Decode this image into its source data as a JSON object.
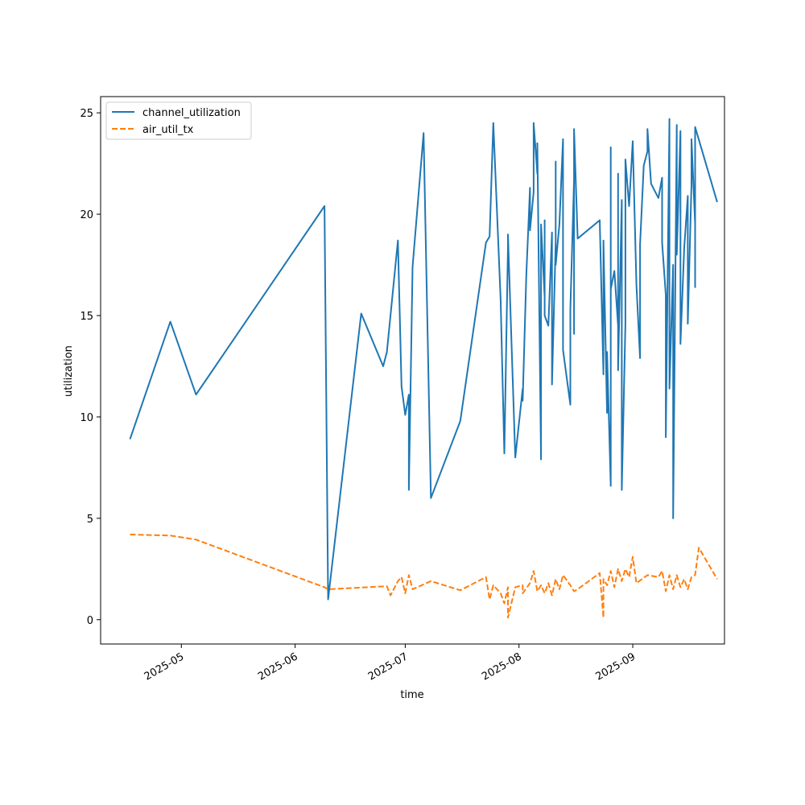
{
  "chart_data": {
    "type": "line",
    "title": "",
    "xlabel": "time",
    "ylabel": "utilization",
    "xlim": [
      "2025-04-09",
      "2025-09-26"
    ],
    "ylim": [
      -1.2,
      25.8
    ],
    "x_ticks": [
      "2025-05-01",
      "2025-06-01",
      "2025-07-01",
      "2025-08-01",
      "2025-09-01"
    ],
    "x_tick_labels": [
      "2025-05",
      "2025-06",
      "2025-07",
      "2025-08",
      "2025-09"
    ],
    "y_ticks": [
      0,
      5,
      10,
      15,
      20,
      25
    ],
    "grid": false,
    "legend_position": "upper-left",
    "series": [
      {
        "name": "channel_utilization",
        "color": "#1f77b4",
        "style": "solid",
        "points": [
          [
            "2025-04-17",
            8.9
          ],
          [
            "2025-04-28",
            14.7
          ],
          [
            "2025-05-05",
            11.1
          ],
          [
            "2025-06-09",
            20.4
          ],
          [
            "2025-06-10",
            1.0
          ],
          [
            "2025-06-19",
            15.1
          ],
          [
            "2025-06-25",
            12.5
          ],
          [
            "2025-06-26",
            13.2
          ],
          [
            "2025-06-29",
            18.7
          ],
          [
            "2025-06-30",
            11.5
          ],
          [
            "2025-07-01",
            10.1
          ],
          [
            "2025-07-02",
            11.1
          ],
          [
            "2025-07-02",
            6.4
          ],
          [
            "2025-07-03",
            17.4
          ],
          [
            "2025-07-06",
            24.0
          ],
          [
            "2025-07-08",
            6.0
          ],
          [
            "2025-07-16",
            9.8
          ],
          [
            "2025-07-23",
            18.6
          ],
          [
            "2025-07-24",
            18.9
          ],
          [
            "2025-07-25",
            24.5
          ],
          [
            "2025-07-27",
            15.8
          ],
          [
            "2025-07-28",
            8.2
          ],
          [
            "2025-07-29",
            18.4
          ],
          [
            "2025-07-29",
            19.0
          ],
          [
            "2025-07-31",
            8.0
          ],
          [
            "2025-08-02",
            11.4
          ],
          [
            "2025-08-02",
            10.8
          ],
          [
            "2025-08-03",
            17.0
          ],
          [
            "2025-08-04",
            21.3
          ],
          [
            "2025-08-04",
            19.2
          ],
          [
            "2025-08-05",
            21.1
          ],
          [
            "2025-08-05",
            24.5
          ],
          [
            "2025-08-06",
            22.0
          ],
          [
            "2025-08-06",
            23.5
          ],
          [
            "2025-08-07",
            7.9
          ],
          [
            "2025-08-07",
            19.5
          ],
          [
            "2025-08-08",
            15.9
          ],
          [
            "2025-08-08",
            19.7
          ],
          [
            "2025-08-08",
            15.0
          ],
          [
            "2025-08-09",
            14.5
          ],
          [
            "2025-08-10",
            19.1
          ],
          [
            "2025-08-10",
            11.6
          ],
          [
            "2025-08-11",
            18.6
          ],
          [
            "2025-08-11",
            22.6
          ],
          [
            "2025-08-11",
            17.5
          ],
          [
            "2025-08-12",
            19.5
          ],
          [
            "2025-08-13",
            23.7
          ],
          [
            "2025-08-13",
            13.3
          ],
          [
            "2025-08-15",
            10.6
          ],
          [
            "2025-08-15",
            15.3
          ],
          [
            "2025-08-16",
            21.7
          ],
          [
            "2025-08-16",
            14.1
          ],
          [
            "2025-08-16",
            24.2
          ],
          [
            "2025-08-17",
            18.8
          ],
          [
            "2025-08-23",
            19.7
          ],
          [
            "2025-08-24",
            12.1
          ],
          [
            "2025-08-24",
            18.7
          ],
          [
            "2025-08-25",
            10.2
          ],
          [
            "2025-08-25",
            13.2
          ],
          [
            "2025-08-26",
            6.6
          ],
          [
            "2025-08-26",
            23.3
          ],
          [
            "2025-08-26",
            16.3
          ],
          [
            "2025-08-27",
            17.2
          ],
          [
            "2025-08-28",
            14.5
          ],
          [
            "2025-08-28",
            22.0
          ],
          [
            "2025-08-28",
            12.3
          ],
          [
            "2025-08-29",
            20.7
          ],
          [
            "2025-08-29",
            6.4
          ],
          [
            "2025-08-30",
            14.6
          ],
          [
            "2025-08-30",
            22.7
          ],
          [
            "2025-08-31",
            20.4
          ],
          [
            "2025-09-01",
            23.6
          ],
          [
            "2025-09-02",
            16.5
          ],
          [
            "2025-09-03",
            12.9
          ],
          [
            "2025-09-03",
            18.5
          ],
          [
            "2025-09-04",
            22.4
          ],
          [
            "2025-09-05",
            23.1
          ],
          [
            "2025-09-05",
            24.2
          ],
          [
            "2025-09-06",
            21.5
          ],
          [
            "2025-09-08",
            20.8
          ],
          [
            "2025-09-09",
            21.8
          ],
          [
            "2025-09-09",
            18.6
          ],
          [
            "2025-09-10",
            16.0
          ],
          [
            "2025-09-10",
            9.0
          ],
          [
            "2025-09-11",
            24.7
          ],
          [
            "2025-09-11",
            11.4
          ],
          [
            "2025-09-12",
            17.5
          ],
          [
            "2025-09-12",
            15.0
          ],
          [
            "2025-09-12",
            5.0
          ],
          [
            "2025-09-13",
            24.4
          ],
          [
            "2025-09-13",
            18.0
          ],
          [
            "2025-09-14",
            24.1
          ],
          [
            "2025-09-14",
            13.6
          ],
          [
            "2025-09-15",
            18.3
          ],
          [
            "2025-09-16",
            20.9
          ],
          [
            "2025-09-16",
            14.6
          ],
          [
            "2025-09-17",
            21.5
          ],
          [
            "2025-09-17",
            23.7
          ],
          [
            "2025-09-18",
            19.5
          ],
          [
            "2025-09-18",
            16.4
          ],
          [
            "2025-09-18",
            24.3
          ],
          [
            "2025-09-24",
            20.6
          ]
        ]
      },
      {
        "name": "air_util_tx",
        "color": "#ff7f0e",
        "style": "dashed",
        "points": [
          [
            "2025-04-17",
            4.2
          ],
          [
            "2025-04-28",
            4.15
          ],
          [
            "2025-05-05",
            3.95
          ],
          [
            "2025-06-09",
            1.6
          ],
          [
            "2025-06-10",
            1.5
          ],
          [
            "2025-06-26",
            1.65
          ],
          [
            "2025-06-27",
            1.2
          ],
          [
            "2025-06-29",
            1.9
          ],
          [
            "2025-06-30",
            2.1
          ],
          [
            "2025-07-01",
            1.3
          ],
          [
            "2025-07-02",
            2.2
          ],
          [
            "2025-07-03",
            1.5
          ],
          [
            "2025-07-08",
            1.9
          ],
          [
            "2025-07-16",
            1.45
          ],
          [
            "2025-07-23",
            2.1
          ],
          [
            "2025-07-24",
            1.0
          ],
          [
            "2025-07-25",
            1.7
          ],
          [
            "2025-07-27",
            1.3
          ],
          [
            "2025-07-28",
            0.8
          ],
          [
            "2025-07-29",
            1.6
          ],
          [
            "2025-07-29",
            0.1
          ],
          [
            "2025-07-31",
            1.6
          ],
          [
            "2025-08-02",
            1.7
          ],
          [
            "2025-08-02",
            1.3
          ],
          [
            "2025-08-04",
            1.8
          ],
          [
            "2025-08-05",
            2.4
          ],
          [
            "2025-08-06",
            1.4
          ],
          [
            "2025-08-07",
            1.7
          ],
          [
            "2025-08-08",
            1.3
          ],
          [
            "2025-08-09",
            1.8
          ],
          [
            "2025-08-10",
            1.2
          ],
          [
            "2025-08-11",
            2.0
          ],
          [
            "2025-08-12",
            1.5
          ],
          [
            "2025-08-13",
            2.2
          ],
          [
            "2025-08-15",
            1.7
          ],
          [
            "2025-08-16",
            1.4
          ],
          [
            "2025-08-17",
            1.5
          ],
          [
            "2025-08-23",
            2.3
          ],
          [
            "2025-08-24",
            0.1
          ],
          [
            "2025-08-24",
            2.0
          ],
          [
            "2025-08-25",
            1.7
          ],
          [
            "2025-08-26",
            2.4
          ],
          [
            "2025-08-27",
            1.6
          ],
          [
            "2025-08-28",
            2.5
          ],
          [
            "2025-08-29",
            1.9
          ],
          [
            "2025-08-30",
            2.5
          ],
          [
            "2025-08-31",
            2.1
          ],
          [
            "2025-09-01",
            3.1
          ],
          [
            "2025-09-02",
            1.8
          ],
          [
            "2025-09-05",
            2.2
          ],
          [
            "2025-09-08",
            2.1
          ],
          [
            "2025-09-09",
            2.4
          ],
          [
            "2025-09-10",
            1.4
          ],
          [
            "2025-09-11",
            2.2
          ],
          [
            "2025-09-12",
            1.5
          ],
          [
            "2025-09-13",
            2.2
          ],
          [
            "2025-09-14",
            1.6
          ],
          [
            "2025-09-15",
            2.0
          ],
          [
            "2025-09-16",
            1.5
          ],
          [
            "2025-09-17",
            2.1
          ],
          [
            "2025-09-18",
            2.2
          ],
          [
            "2025-09-19",
            3.55
          ],
          [
            "2025-09-24",
            2.0
          ]
        ]
      }
    ]
  }
}
